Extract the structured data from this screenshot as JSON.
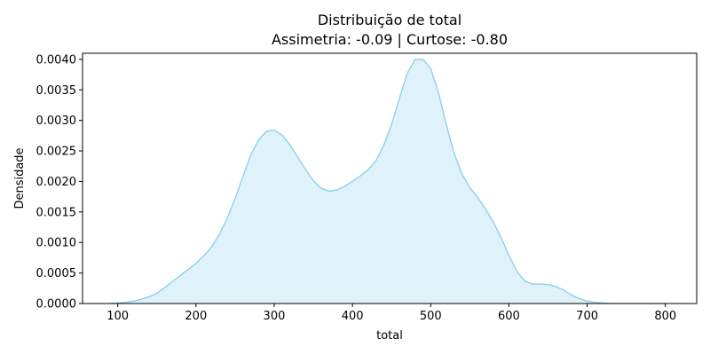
{
  "chart_data": {
    "type": "area",
    "title": "Distribuição de total",
    "subtitle": "Assimetria: -0.09 | Curtose: -0.80",
    "xlabel": "total",
    "ylabel": "Densidade",
    "xlim": [
      55,
      840
    ],
    "ylim": [
      0,
      0.0041
    ],
    "x_ticks": [
      100,
      200,
      300,
      400,
      500,
      600,
      700,
      800
    ],
    "y_ticks": [
      0,
      0.0005,
      0.001,
      0.0015,
      0.002,
      0.0025,
      0.003,
      0.0035,
      0.004
    ],
    "x_tick_labels": [
      "100",
      "200",
      "300",
      "400",
      "500",
      "600",
      "700",
      "800"
    ],
    "y_tick_labels": [
      "0.0000",
      "0.0005",
      "0.0010",
      "0.0015",
      "0.0020",
      "0.0025",
      "0.0030",
      "0.0035",
      "0.0040"
    ],
    "grid": false,
    "legend": "none",
    "colors": {
      "line": "#87ceeb",
      "fill": "#87ceeb",
      "fill_opacity": 0.27
    },
    "series": [
      {
        "x": [
          90,
          100,
          110,
          120,
          130,
          140,
          150,
          160,
          170,
          180,
          190,
          200,
          210,
          220,
          230,
          240,
          250,
          260,
          270,
          280,
          290,
          300,
          310,
          320,
          330,
          340,
          350,
          360,
          370,
          380,
          390,
          400,
          410,
          420,
          430,
          440,
          450,
          460,
          470,
          480,
          490,
          500,
          510,
          520,
          530,
          540,
          550,
          560,
          570,
          580,
          590,
          600,
          610,
          620,
          630,
          640,
          650,
          660,
          670,
          680,
          690,
          700,
          710,
          720,
          730,
          740,
          750,
          760,
          770,
          780,
          790,
          800
        ],
        "y": [
          0.0,
          1e-05,
          2e-05,
          4e-05,
          7e-05,
          0.00011,
          0.00017,
          0.00026,
          0.00036,
          0.00046,
          0.00056,
          0.00066,
          0.00078,
          0.00093,
          0.00113,
          0.0014,
          0.00172,
          0.00208,
          0.00243,
          0.00268,
          0.00282,
          0.00284,
          0.00276,
          0.0026,
          0.0024,
          0.0022,
          0.00201,
          0.00189,
          0.00184,
          0.00186,
          0.00192,
          0.002,
          0.00209,
          0.00219,
          0.00234,
          0.00259,
          0.00293,
          0.00336,
          0.00377,
          0.004,
          0.004,
          0.00385,
          0.00345,
          0.00293,
          0.00246,
          0.00212,
          0.0019,
          0.00174,
          0.00155,
          0.00134,
          0.00108,
          0.00079,
          0.00053,
          0.00037,
          0.00032,
          0.00032,
          0.00031,
          0.00028,
          0.00022,
          0.00014,
          8e-05,
          4e-05,
          2e-05,
          1e-05,
          0.0,
          0.0,
          0.0,
          0.0,
          0.0,
          0.0,
          0.0,
          0.0
        ]
      }
    ]
  }
}
